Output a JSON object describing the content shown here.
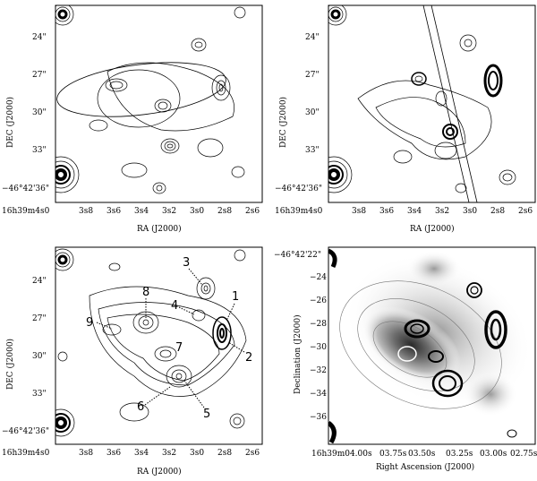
{
  "panels": [
    {
      "id": "top-left",
      "ylabel": "DEC (J2000)",
      "xlabel": "RA (J2000)",
      "yticks": [
        "24\"",
        "27\"",
        "30\"",
        "33\"",
        "−46°42'36\""
      ],
      "xticks": [
        "16h39m4s0",
        "3s8",
        "3s6",
        "3s4",
        "3s2",
        "3s0",
        "2s8",
        "2s6"
      ]
    },
    {
      "id": "top-right",
      "ylabel": "DEC (J2000)",
      "xlabel": "RA (J2000)",
      "yticks": [
        "24\"",
        "27\"",
        "30\"",
        "33\"",
        "−46°42'36\""
      ],
      "xticks": [
        "16h39m4s0",
        "3s8",
        "3s6",
        "3s4",
        "3s2",
        "3s0",
        "2s8",
        "2s6"
      ]
    },
    {
      "id": "bottom-left",
      "ylabel": "DEC (J2000)",
      "xlabel": "RA (J2000)",
      "yticks": [
        "24\"",
        "27\"",
        "30\"",
        "33\"",
        "−46°42'36\""
      ],
      "xticks": [
        "16h39m4s0",
        "3s8",
        "3s6",
        "3s4",
        "3s2",
        "3s0",
        "2s8",
        "2s6"
      ],
      "source_labels": [
        "1",
        "2",
        "3",
        "4",
        "5",
        "6",
        "7",
        "8",
        "9"
      ]
    },
    {
      "id": "bottom-right",
      "ylabel": "Declination (J2000)",
      "xlabel": "Right Ascension (J2000)",
      "yticks": [
        "−46°42'22\"",
        "−24",
        "−26",
        "−28",
        "−30",
        "−32",
        "−34",
        "−36"
      ],
      "xticks": [
        "16h39m04.00s",
        "03.75s",
        "03.50s",
        "03.25s",
        "03.00s",
        "02.75s"
      ]
    }
  ]
}
